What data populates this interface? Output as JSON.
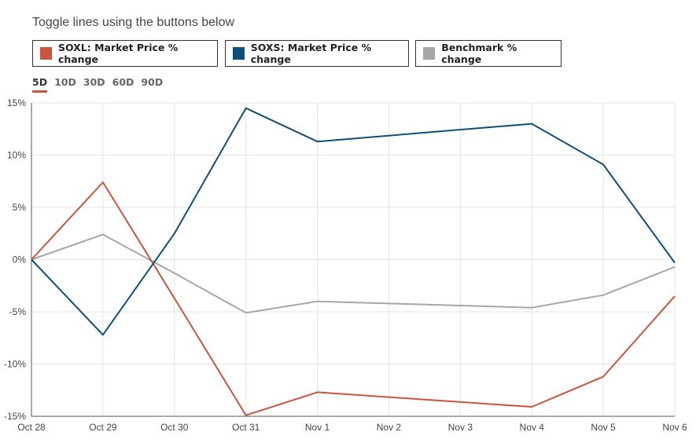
{
  "header": {
    "title": "Toggle lines using the buttons below"
  },
  "legend": [
    {
      "label": "SOXL: Market Price % change",
      "color": "#c8553d"
    },
    {
      "label": "SOXS: Market Price % change",
      "color": "#0e4f7a"
    },
    {
      "label": "Benchmark % change",
      "color": "#a6a6a6"
    }
  ],
  "periods": {
    "items": [
      "5D",
      "10D",
      "30D",
      "60D",
      "90D"
    ],
    "active": "5D"
  },
  "chart_data": {
    "type": "line",
    "title": "",
    "xlabel": "",
    "ylabel": "",
    "categories": [
      "Oct 28",
      "Oct 29",
      "Oct 30",
      "Oct 31",
      "Nov 1",
      "Nov 2",
      "Nov 3",
      "Nov 4",
      "Nov 5",
      "Nov 6"
    ],
    "ylim": [
      -15,
      15
    ],
    "yticks": [
      15,
      10,
      5,
      0,
      -5,
      -10,
      -15
    ],
    "ytick_labels": [
      "15%",
      "10%",
      "5%",
      "0%",
      "-5%",
      "-10%",
      "-15%"
    ],
    "grid": true,
    "series": [
      {
        "name": "SOXL: Market Price % change",
        "color": "#c8553d",
        "points": [
          [
            0,
            0
          ],
          [
            1,
            7.4
          ],
          [
            2,
            -3.7
          ],
          [
            3,
            -14.9
          ],
          [
            4,
            -12.7
          ],
          [
            7,
            -14.1
          ],
          [
            8,
            -11.2
          ],
          [
            9,
            -3.5
          ]
        ]
      },
      {
        "name": "SOXS: Market Price % change",
        "color": "#0e4f7a",
        "points": [
          [
            0,
            0
          ],
          [
            1,
            -7.2
          ],
          [
            2,
            2.5
          ],
          [
            3,
            14.5
          ],
          [
            4,
            11.3
          ],
          [
            7,
            13.0
          ],
          [
            8,
            9.1
          ],
          [
            9,
            -0.3
          ]
        ]
      },
      {
        "name": "Benchmark % change",
        "color": "#a6a6a6",
        "points": [
          [
            0,
            0
          ],
          [
            1,
            2.4
          ],
          [
            2,
            -1.3
          ],
          [
            3,
            -5.1
          ],
          [
            4,
            -4.0
          ],
          [
            7,
            -4.6
          ],
          [
            8,
            -3.4
          ],
          [
            9,
            -0.7
          ]
        ]
      }
    ]
  }
}
